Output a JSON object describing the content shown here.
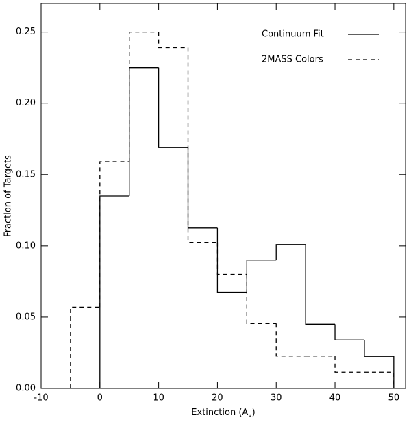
{
  "chart_data": {
    "type": "histogram",
    "x_label": {
      "text": "Extinction (A",
      "subscript": "v",
      "suffix": ")"
    },
    "y_label": "Fraction of Targets",
    "xlim": [
      -10,
      52
    ],
    "ylim": [
      0,
      0.27
    ],
    "xticks": [
      -10,
      0,
      10,
      20,
      30,
      40,
      50
    ],
    "yticks": [
      {
        "value": 0,
        "label": "0.00"
      },
      0.05,
      {
        "value": 0.1,
        "label": "0.10"
      },
      0.15,
      {
        "value": 0.2,
        "label": "0.20"
      },
      0.25
    ],
    "legend": "upper right",
    "series": [
      {
        "name": "Continuum Fit",
        "color": "#000000",
        "line_style": "solid",
        "bins": [
          0,
          5,
          10,
          15,
          20,
          25,
          30,
          35,
          40,
          45,
          50
        ],
        "values": [
          0.135,
          0.225,
          0.169,
          0.1125,
          0.0675,
          0.09,
          0.101,
          0.045,
          0.034,
          0.0225
        ]
      },
      {
        "name": "2MASS Colors",
        "color": "#000000",
        "line_style": "dashed",
        "bins": [
          -5,
          0,
          5,
          10,
          15,
          20,
          25,
          30,
          35,
          40,
          45,
          50
        ],
        "values": [
          0.057,
          0.159,
          0.25,
          0.239,
          0.1025,
          0.08,
          0.0455,
          0.0227,
          0.0227,
          0.0114,
          0.0114
        ]
      }
    ]
  }
}
